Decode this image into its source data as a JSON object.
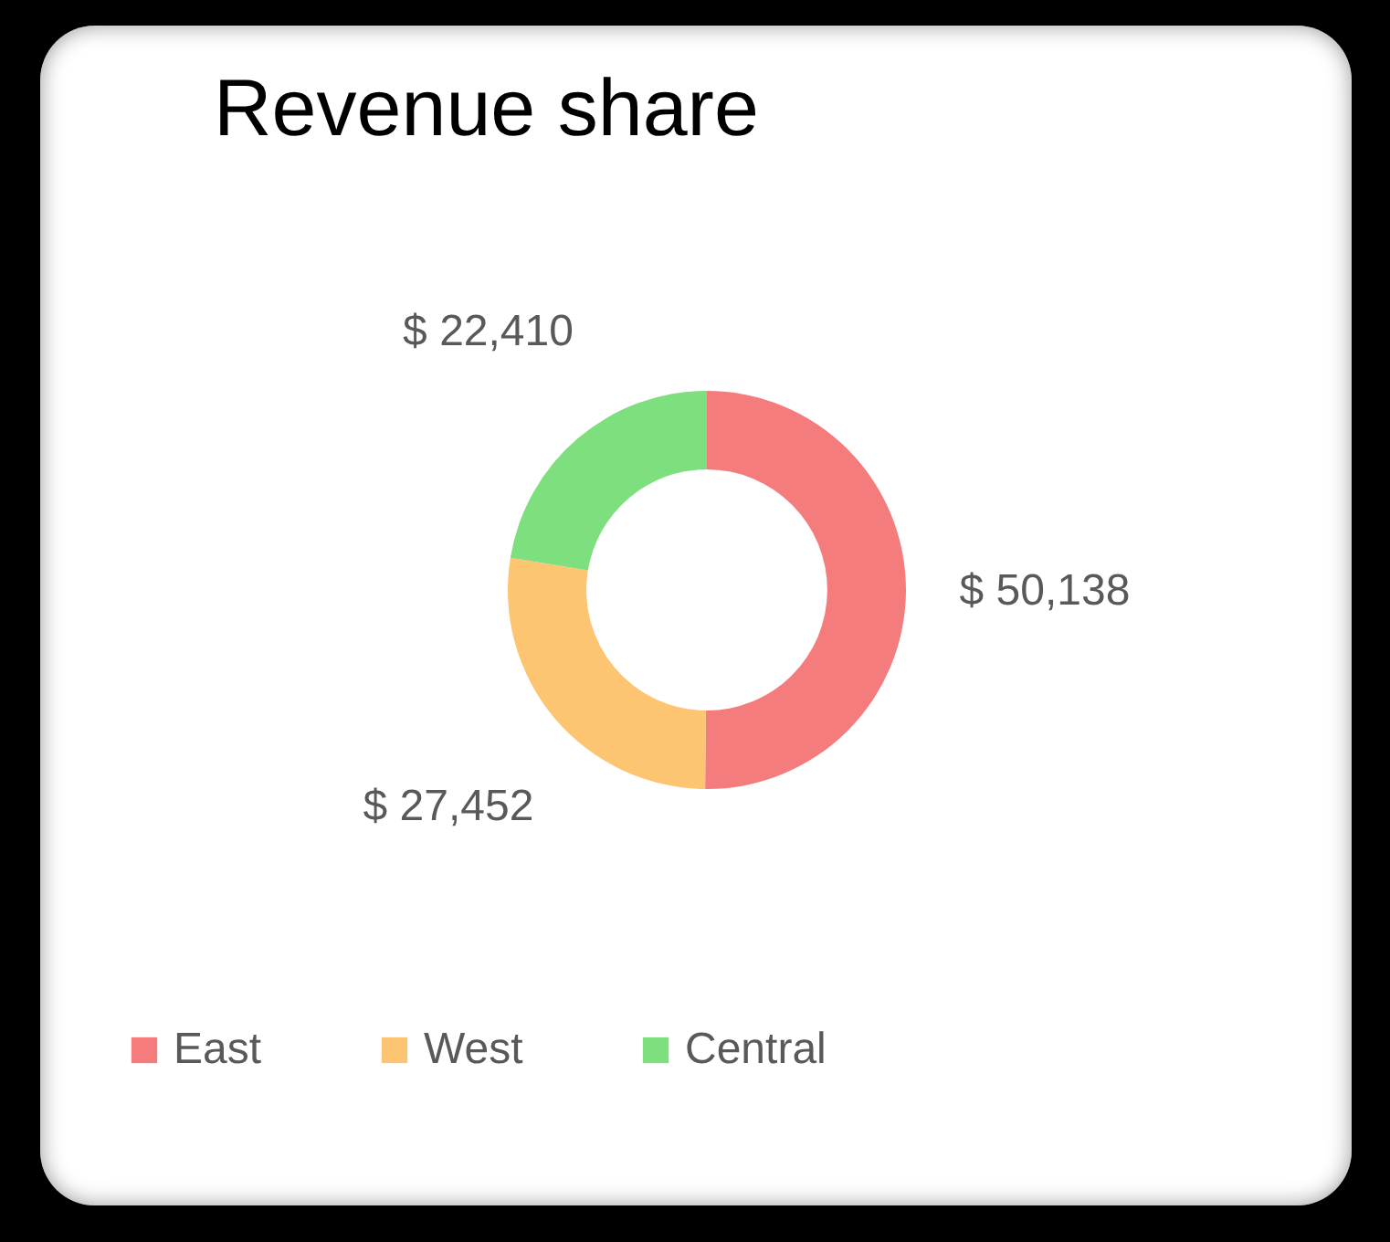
{
  "chart_data": {
    "type": "donut",
    "title": "Revenue share",
    "categories": [
      "East",
      "West",
      "Central"
    ],
    "values": [
      50138,
      27452,
      22410
    ],
    "colors": [
      "#f47c7c",
      "#fdc571",
      "#7ddf7d"
    ],
    "value_labels": [
      "$ 50,138",
      "$ 27,452",
      "$ 22,410"
    ],
    "legend": "bottom"
  }
}
